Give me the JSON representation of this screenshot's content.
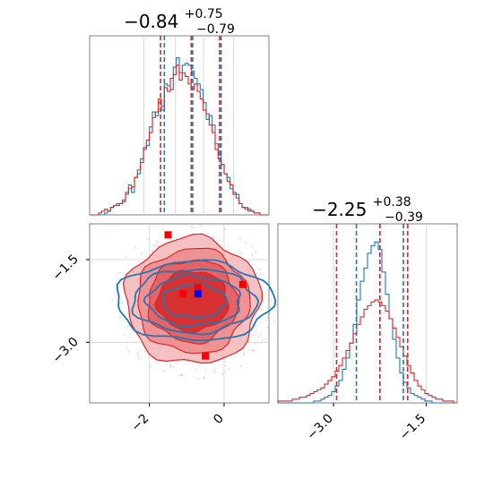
{
  "chart_data": [
    {
      "panel": "marginal-x",
      "type": "histogram",
      "title": {
        "base": "−0.84",
        "sup": "+0.75",
        "sub": "−0.79"
      },
      "x_range": [
        -3.6,
        1.2
      ],
      "series": [
        {
          "name": "",
          "color": "#1f77b4",
          "bins": [
            -3.6,
            1.2
          ],
          "values": [
            0.0,
            0.0,
            0.0,
            0.0,
            0.0,
            0.01,
            0.02,
            0.04,
            0.05,
            0.06,
            0.06,
            0.07,
            0.11,
            0.16,
            0.12,
            0.2,
            0.22,
            0.3,
            0.35,
            0.37,
            0.47,
            0.55,
            0.53,
            0.6,
            0.56,
            0.7,
            0.69,
            0.67,
            0.79,
            0.84,
            0.76,
            0.8,
            0.81,
            0.8,
            0.77,
            0.73,
            0.7,
            0.67,
            0.6,
            0.51,
            0.53,
            0.48,
            0.38,
            0.32,
            0.27,
            0.22,
            0.2,
            0.14,
            0.12,
            0.11,
            0.06,
            0.04,
            0.03,
            0.02,
            0.02,
            0.01,
            0.01,
            0.0,
            0.0,
            0.0
          ]
        },
        {
          "name": "",
          "color": "#d62728",
          "bins": [
            -3.6,
            1.2
          ],
          "values": [
            0.0,
            0.0,
            0.0,
            0.01,
            0.02,
            0.03,
            0.02,
            0.04,
            0.05,
            0.05,
            0.06,
            0.08,
            0.12,
            0.14,
            0.15,
            0.2,
            0.24,
            0.28,
            0.36,
            0.4,
            0.44,
            0.52,
            0.55,
            0.62,
            0.58,
            0.68,
            0.66,
            0.73,
            0.75,
            0.8,
            0.72,
            0.76,
            0.74,
            0.7,
            0.67,
            0.7,
            0.66,
            0.62,
            0.56,
            0.54,
            0.48,
            0.44,
            0.35,
            0.3,
            0.27,
            0.22,
            0.18,
            0.16,
            0.11,
            0.09,
            0.06,
            0.04,
            0.04,
            0.03,
            0.02,
            0.01,
            0.01,
            0.0,
            0.0,
            0.0
          ]
        }
      ],
      "vlines": [
        {
          "color": "#1f77b4",
          "x": [
            -1.6,
            -0.84,
            -0.08
          ]
        },
        {
          "color": "#d62728",
          "x": [
            -1.7,
            -0.88,
            -0.12
          ]
        }
      ]
    },
    {
      "panel": "joint",
      "type": "contour",
      "x_range": [
        -3.6,
        1.2
      ],
      "y_range": [
        -4.1,
        -0.85
      ],
      "x_ticks": [
        -2,
        0
      ],
      "x_tick_labels": [
        "−2",
        "0"
      ],
      "y_ticks": [
        -1.5,
        -3.0
      ],
      "y_tick_labels": [
        "−1.5",
        "−3.0"
      ],
      "grid": true,
      "red_contours": {
        "center": [
          -0.84,
          -2.25
        ],
        "radii": [
          [
            1.8,
            1.15
          ],
          [
            1.5,
            0.95
          ],
          [
            1.2,
            0.75
          ],
          [
            0.95,
            0.55
          ]
        ]
      },
      "blue_contours": {
        "center": [
          -0.8,
          -2.25
        ],
        "radii": [
          [
            2.1,
            0.72
          ],
          [
            1.65,
            0.58
          ],
          [
            1.25,
            0.45
          ],
          [
            0.85,
            0.3
          ]
        ]
      },
      "red_markers": [
        [
          -1.5,
          -1.05
        ],
        [
          -1.1,
          -2.12
        ],
        [
          -0.7,
          -2.0
        ],
        [
          0.5,
          -1.95
        ],
        [
          -0.5,
          -3.25
        ]
      ],
      "blue_marker": [
        -0.7,
        -2.12
      ]
    },
    {
      "panel": "marginal-y",
      "type": "histogram",
      "title": {
        "base": "−2.25",
        "sup": "+0.38",
        "sub": "−0.39"
      },
      "x_range": [
        -3.9,
        -1.0
      ],
      "x_ticks": [
        -3.0,
        -1.5
      ],
      "x_tick_labels": [
        "−3.0",
        "−1.5"
      ],
      "series": [
        {
          "name": "",
          "color": "#1f77b4",
          "bins": [
            -3.9,
            -1.0
          ],
          "values": [
            0.0,
            0.0,
            0.0,
            0.0,
            0.0,
            0.0,
            0.0,
            0.0,
            0.0,
            0.0,
            0.01,
            0.01,
            0.02,
            0.03,
            0.04,
            0.06,
            0.09,
            0.12,
            0.18,
            0.24,
            0.32,
            0.42,
            0.55,
            0.65,
            0.72,
            0.8,
            0.84,
            0.86,
            0.82,
            0.7,
            0.58,
            0.45,
            0.34,
            0.24,
            0.16,
            0.11,
            0.08,
            0.05,
            0.04,
            0.03,
            0.02,
            0.01,
            0.01,
            0.0,
            0.0,
            0.0,
            0.0,
            0.0,
            0.0,
            0.0
          ]
        },
        {
          "name": "",
          "color": "#d62728",
          "bins": [
            -3.9,
            -1.0
          ],
          "values": [
            0.01,
            0.01,
            0.01,
            0.01,
            0.02,
            0.02,
            0.03,
            0.03,
            0.04,
            0.05,
            0.06,
            0.07,
            0.08,
            0.1,
            0.12,
            0.14,
            0.17,
            0.2,
            0.24,
            0.28,
            0.32,
            0.37,
            0.42,
            0.46,
            0.5,
            0.52,
            0.54,
            0.55,
            0.54,
            0.52,
            0.49,
            0.45,
            0.4,
            0.35,
            0.3,
            0.25,
            0.2,
            0.16,
            0.12,
            0.09,
            0.07,
            0.05,
            0.04,
            0.03,
            0.02,
            0.02,
            0.01,
            0.01,
            0.01,
            0.0
          ]
        }
      ],
      "vlines": [
        {
          "color": "#1f77b4",
          "x": [
            -2.63,
            -2.25,
            -1.87
          ]
        },
        {
          "color": "#d62728",
          "x": [
            -2.95,
            -2.25,
            -1.8
          ]
        }
      ]
    }
  ]
}
